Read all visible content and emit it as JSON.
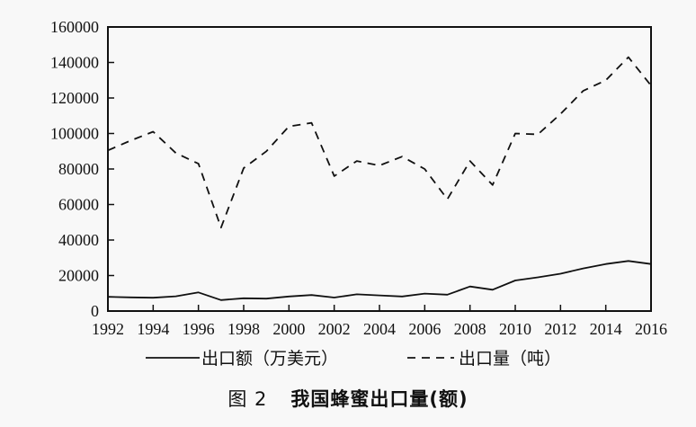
{
  "chart_data": {
    "type": "line",
    "title": "我国蜂蜜出口量(额)",
    "figure_label": "图 2",
    "x": [
      1992,
      1993,
      1994,
      1995,
      1996,
      1997,
      1998,
      1999,
      2000,
      2001,
      2002,
      2003,
      2004,
      2005,
      2006,
      2007,
      2008,
      2009,
      2010,
      2011,
      2012,
      2013,
      2014,
      2015,
      2016
    ],
    "x_tick_labels": [
      "1992",
      "1994",
      "1996",
      "1998",
      "2000",
      "2002",
      "2004",
      "2006",
      "2008",
      "2010",
      "2012",
      "2014",
      "2016"
    ],
    "y_tick_labels": [
      "0",
      "20000",
      "40000",
      "60000",
      "80000",
      "100000",
      "120000",
      "140000",
      "160000"
    ],
    "xlim": [
      1992,
      2016
    ],
    "ylim": [
      0,
      160000
    ],
    "series": [
      {
        "name": "出口额（万美元）",
        "style": "solid",
        "values": [
          8000,
          7700,
          7500,
          8300,
          10500,
          6200,
          7200,
          7000,
          8200,
          9000,
          7600,
          9400,
          8800,
          8200,
          9800,
          9200,
          13800,
          12000,
          17200,
          19000,
          21000,
          24000,
          26500,
          28200,
          26500
        ]
      },
      {
        "name": "出口量（吨）",
        "style": "dashed",
        "values": [
          90500,
          96000,
          101000,
          89000,
          83000,
          47000,
          80500,
          90000,
          104000,
          106000,
          76000,
          84500,
          82000,
          87000,
          80000,
          63000,
          84500,
          71000,
          100000,
          99500,
          111000,
          124000,
          130000,
          143000,
          127000
        ]
      }
    ],
    "colors": {
      "line": "#111111",
      "background": "#f8f8f8"
    }
  }
}
